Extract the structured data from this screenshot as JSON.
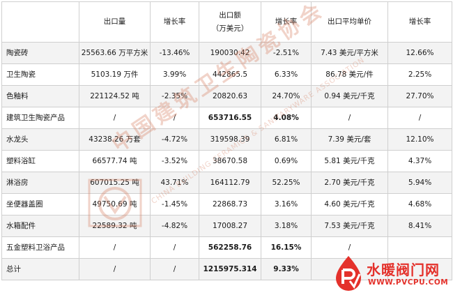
{
  "table": {
    "headers": [
      "",
      "出口量",
      "增长率",
      "出口额",
      "增长率",
      "出口平均单价",
      "增长率"
    ],
    "amount_unit": "（万美元）",
    "rows": [
      {
        "name": "陶瓷砖",
        "volume": "25563.66 万平方米",
        "vol_growth": "-13.46%",
        "amount": "190030.42",
        "amt_growth": "-2.51%",
        "unit_price": "7.43 美元/平方米",
        "price_growth": "12.66%",
        "bold": false
      },
      {
        "name": "卫生陶瓷",
        "volume": "5103.19 万件",
        "vol_growth": "3.99%",
        "amount": "442865.5",
        "amt_growth": "6.33%",
        "unit_price": "86.78 美元/件",
        "price_growth": "2.25%",
        "bold": false
      },
      {
        "name": "色釉料",
        "volume": "221124.52 吨",
        "vol_growth": "-2.35%",
        "amount": "20820.63",
        "amt_growth": "24.70%",
        "unit_price": "0.94 美元/千克",
        "price_growth": "27.70%",
        "bold": false
      },
      {
        "name": "建筑卫生陶瓷产品",
        "volume": "/",
        "vol_growth": "/",
        "amount": "653716.55",
        "amt_growth": "4.08%",
        "unit_price": "/",
        "price_growth": "/",
        "bold": true
      },
      {
        "name": "水龙头",
        "volume": "43238.26 万套",
        "vol_growth": "-4.72%",
        "amount": "319598.39",
        "amt_growth": "6.81%",
        "unit_price": "7.39 美元/套",
        "price_growth": "12.10%",
        "bold": false
      },
      {
        "name": "塑料浴缸",
        "volume": "66577.74 吨",
        "vol_growth": "-3.52%",
        "amount": "38670.58",
        "amt_growth": "0.69%",
        "unit_price": "5.81 美元/千克",
        "price_growth": "4.37%",
        "bold": false
      },
      {
        "name": "淋浴房",
        "volume": "607015.25 吨",
        "vol_growth": "43.71%",
        "amount": "164112.79",
        "amt_growth": "52.25%",
        "unit_price": "2.70 美元/千克",
        "price_growth": "5.94%",
        "bold": false
      },
      {
        "name": "坐便器盖圈",
        "volume": "49750.69 吨",
        "vol_growth": "-1.45%",
        "amount": "22868.73",
        "amt_growth": "3.16%",
        "unit_price": "4.60 美元/千克",
        "price_growth": "4.68%",
        "bold": false
      },
      {
        "name": "水箱配件",
        "volume": "22589.32 吨",
        "vol_growth": "-4.82%",
        "amount": "17008.27",
        "amt_growth": "3.18%",
        "unit_price": "7.53 美元/千克",
        "price_growth": "8.41%",
        "bold": false
      },
      {
        "name": "五金塑料卫浴产品",
        "volume": "/",
        "vol_growth": "/",
        "amount": "562258.76",
        "amt_growth": "16.15%",
        "unit_price": "/",
        "price_growth": "",
        "bold": true
      },
      {
        "name": "总计",
        "volume": "/",
        "vol_growth": "/",
        "amount": "1215975.314",
        "amt_growth": "9.33%",
        "unit_price": "",
        "price_growth": "",
        "bold": true
      }
    ]
  },
  "watermark": {
    "cn": "中国建筑卫生陶瓷协会",
    "en": "CHINA BUILDING CERAMICS & SANITARYWARE ASSOCIATION"
  },
  "brand": {
    "name": "水暖阀门网",
    "url": "WWW.PVCPU.COM",
    "logo_color": "#e4312b"
  },
  "colors": {
    "border": "#cfcfcf",
    "stripe": "#f3f3f3",
    "watermark": "#d68264"
  }
}
